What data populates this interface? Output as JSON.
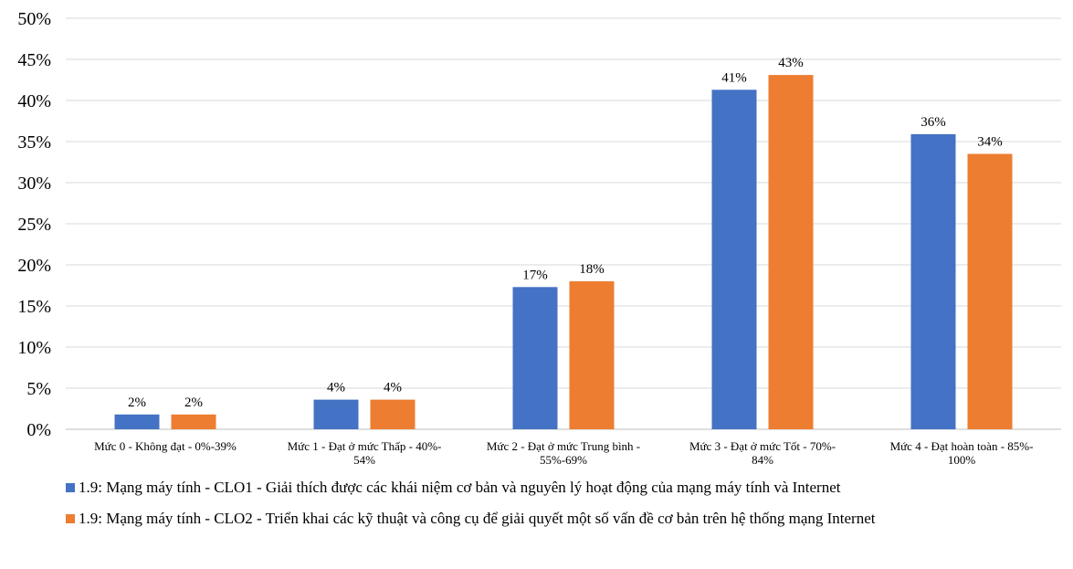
{
  "chart_data": {
    "type": "bar",
    "categories": [
      [
        "Mức 0 - Không đạt - 0%-39%"
      ],
      [
        "Mức 1 - Đạt ở mức Thấp - 40%-",
        "54%"
      ],
      [
        "Mức 2 - Đạt ở mức Trung bình -",
        "55%-69%"
      ],
      [
        "Mức 3 - Đạt ở mức Tốt - 70%-",
        "84%"
      ],
      [
        "Mức 4 - Đạt hoàn toàn - 85%-",
        "100%"
      ]
    ],
    "series": [
      {
        "name": "1.9: Mạng máy tính - CLO1 - Giải thích được các khái niệm cơ bản và nguyên lý hoạt động của mạng máy tính và Internet",
        "color": "#4472C4",
        "values": [
          1.8,
          3.6,
          17.3,
          41.3,
          35.9
        ],
        "labels": [
          "2%",
          "4%",
          "17%",
          "41%",
          "36%"
        ]
      },
      {
        "name": "1.9: Mạng máy tính - CLO2 - Triển khai các kỹ thuật và công cụ để giải quyết một số vấn đề cơ bản trên hệ thống mạng Internet",
        "color": "#ED7D31",
        "values": [
          1.8,
          3.6,
          18.0,
          43.1,
          33.5
        ],
        "labels": [
          "2%",
          "4%",
          "18%",
          "43%",
          "34%"
        ]
      }
    ],
    "ylim": [
      0,
      50
    ],
    "yticks": [
      "0%",
      "5%",
      "10%",
      "15%",
      "20%",
      "25%",
      "30%",
      "35%",
      "40%",
      "45%",
      "50%"
    ],
    "grid": true,
    "legend": "bottom",
    "xlabel": "",
    "ylabel": "",
    "title": ""
  }
}
